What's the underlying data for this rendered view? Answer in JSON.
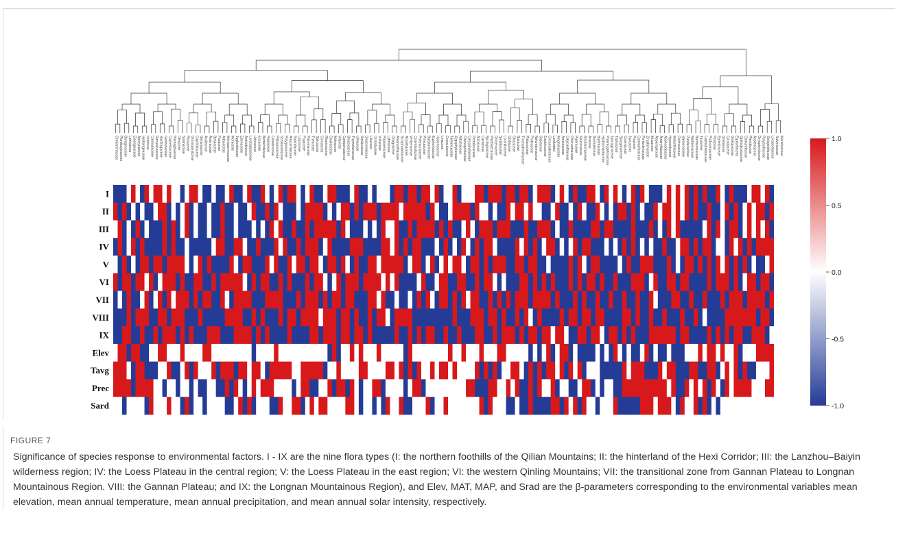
{
  "figure": {
    "label": "FIGURE 7",
    "caption": " Significance of species response to environmental factors. I - IX are the nine flora types (I: the northern foothills of the Qilian Mountains; II: the hinterland of the Hexi Corridor; III: the Lanzhou–Baiyin wilderness region; IV: the Loess Plateau in the central region; V: the Loess Plateau in the east region; VI: the western Qinling Mountains; VII: the transitional zone from Gannan Plateau to Longnan Mountainous Region. VIII: the Gannan Plateau; and IX: the Longnan Mountainous Region), and Elev, MAT, MAP, and Srad are the β-parameters corresponding to the environmental variables mean elevation, mean annual temperature, mean annual precipitation, and mean annual solar intensity, respectively."
  },
  "chart_data": {
    "type": "heatmap",
    "rows": [
      "I",
      "II",
      "III",
      "IV",
      "V",
      "VI",
      "VII",
      "VIII",
      "IX",
      "Elev",
      "Tavg",
      "Prec",
      "Sard"
    ],
    "colorbar": {
      "ticks": [
        "1.0",
        "0.5",
        "0.0",
        "-0.5",
        "-1.0"
      ],
      "range": [
        -1.0,
        1.0
      ],
      "colors": {
        "high": "#d7191c",
        "mid": "#ffffff",
        "low": "#253c96"
      }
    },
    "columns": [
      "Orobanchaceae",
      "Plumbaginaceae",
      "Boraginaceae",
      "Lamiaceae",
      "Elaeagnaceae",
      "Apocynaceae",
      "Hydrangeaceae",
      "Iridaceae",
      "Cannabaceae",
      "Ranunculaceae",
      "Saxifragaceae",
      "Gentianaceae",
      "Cupressaceae",
      "Plantaginaceae",
      "Oleaceae",
      "Solanaceae",
      "Rosaceae",
      "Grossulariaceae",
      "Caprifoliaceae",
      "Geraniaceae",
      "Araliaceae",
      "Asteraceae",
      "Betulaceae",
      "Fabaceae",
      "Adoxaceae",
      "Menispermaceae",
      "Moraceae",
      "Juglandaceae",
      "Ebenaceae",
      "Actinidiaceae",
      "Lardizabalaceae",
      "Urticaceae",
      "Ericaceae",
      "Berberidaceae",
      "Rubiaceae",
      "Celastraceae",
      "Pittosporaceae",
      "Schisandraceae",
      "Polygonaceae",
      "Anacardiaceae",
      "Sapindaceae",
      "Lauraceae",
      "Fagaceae",
      "Paeoniaceae",
      "Theaceae",
      "Salicaceae",
      "Cornaceae",
      "Rhamnaceae",
      "Oxalidaceae",
      "Malvaceae",
      "Vitaceae",
      "Campanulaceae",
      "Brassicaceae",
      "Thymelaeaceae",
      "Ulmaceae",
      "Smilacaceae",
      "Dioscoreaceae",
      "Liliaceae",
      "Orchidaceae",
      "Violaceae",
      "Papaveraceae",
      "Lythraceae",
      "Onagraceae",
      "Amaranthaceae",
      "Scrophulariaceae",
      "Acanthaceae",
      "Verbenaceae",
      "Convolvulaceae",
      "Polemoniaceae",
      "Primulaceae",
      "Balsaminaceae",
      "Euphorbiaceae",
      "Hypericaceae",
      "Linaceae",
      "Crassulaceae",
      "Tamaricaceae",
      "Zygophyllaceae",
      "Nitrariaceae",
      "Chenopodiaceae",
      "Caryophyllaceae",
      "Portulacaceae",
      "Aizoaceae",
      "Cactaceae",
      "Nyctaginaceae",
      "Phytolaccaceae",
      "Droseraceae",
      "Santalaceae",
      "Loranthaceae",
      "Opiliaceae",
      "Olacaceae",
      "Buxaceae",
      "Trochodendraceae",
      "Platanaceae",
      "Proteaceae",
      "Nelumbonaceae",
      "Sabiaceae",
      "Eupteleaceae",
      "Circaeasteraceae",
      "Lardizabal",
      "Magnoliaceae",
      "Annonaceae",
      "Calycanthaceae",
      "Chloranthaceae",
      "Piperaceae",
      "Saururaceae",
      "Aristolochiaceae",
      "Araceae",
      "Alismataceae",
      "Butomaceae",
      "Hydrocharitaceae",
      "Potamogetonaceae",
      "Juncaginaceae",
      "Typhaceae",
      "Sparganiaceae",
      "Cyperaceae",
      "Juncaceae",
      "Poaceae",
      "Commelinaceae",
      "Pontederiaceae",
      "Zingiberaceae",
      "Musaceae",
      "Asparagaceae",
      "Amaryllidaceae",
      "Asphodelaceae",
      "Hypoxidaceae",
      "Melanthiaceae",
      "Colchicaceae",
      "Stemonaceae",
      "Pandanaceae",
      "Nartheciaceae",
      "Burmanniaceae",
      "Taxaceae",
      "Cephalotaxaceae",
      "Podocarpaceae",
      "Pinaceae",
      "Ephedraceae",
      "Gnetaceae",
      "Cycadaceae",
      "Ginkgoaceae",
      "Equisetaceae",
      "Ophioglossaceae",
      "Osmundaceae",
      "Pteridaceae",
      "Aspleniaceae",
      "Dryopteridaceae",
      "Polypodiaceae",
      "Selaginellaceae",
      "Lycopodiaceae",
      "Salviniaceae",
      "Marsileaceae"
    ],
    "values_encoding": "rows of digits, one per column: 0 = -1.0 (blue), 1 = 0.0 (white), 2 = +1.0 (red); Elev/Tavg/Prec/Sard rows share the same scale",
    "values": [
      "0001210212212110122100100120012002101202210120012200012001011102202202212011201112202220220220122201210200221021210120210001212120202002102000122120",
      "2020101001220101201001002001001200202100010222201012202022202222122222021001222202110100212212110012001021002101022020100212212120200200120201212202",
      "1201020100020201201001002001000101021200200202222202100010102112002022220202001210222022200020022201002000022022000020002010212000001202102201212120",
      "0201202000020200100000122002210020002120020222012000022200002212020220001020102102022100002120201220101202200010102020101002001220202201102120202222",
      "1020102202202222101202000021022000212002122022102202102002212222201220120121221022020222002202200100002021022000010200222000201022020202120202010012",
      "2022022120122202002200202222210202200202000202210120222022221212000012001220022002022101000220202020002020220200200022201200220220000202220201220220",
      "0102001201202122202022002102222000222200020222020220220002212001001020210220202122002020202220222202000202002002002002002100022002002000202220222202",
      "0002022200220222000200000222200202000202202222122202202002022102222000000000200022202202002021020000202202202200002202002002000200201000022222220220",
      "0022002002022202020002220002222020200002000022022202202202000002002020220020020002200202220202202212210022022102202020002222220220000202020220022201",
      "1220220011221112111122111111111011112111111111110201121211121111102111111112112111211122111110101201220100001010210100120100100011121221211201112222",
      "2221022000112001202111202220221221022222112222201121111221111221202021121221211112020201122102020221202120111000002122200021220002200220121202001112",
      "2222022221101101101001100202101212221111012200112022021011220111101220111111111220002211212002021120110012201011002222222222120021212021021222211122",
      "1101111021112110201101111001202011100211220121221111221011010211200111201121111111202111001002000022021202110111200000222122210211202010111111111111"
    ]
  }
}
